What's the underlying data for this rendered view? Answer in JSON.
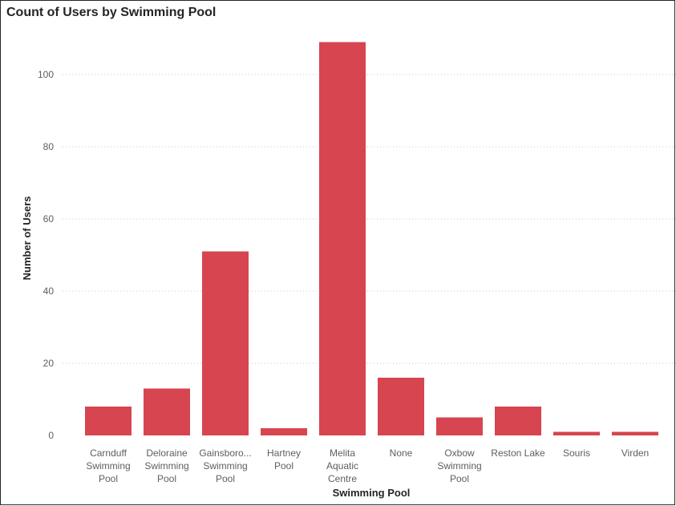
{
  "chart_data": {
    "type": "bar",
    "title": "Count of Users by Swimming Pool",
    "xlabel": "Swimming Pool",
    "ylabel": "Number of Users",
    "categories": [
      "Carnduff Swimming Pool",
      "Deloraine Swimming Pool",
      "Gainsboro... Swimming Pool",
      "Hartney Pool",
      "Melita Aquatic Centre",
      "None",
      "Oxbow Swimming Pool",
      "Reston Lake",
      "Souris",
      "Virden"
    ],
    "category_lines": [
      [
        "Carnduff",
        "Swimming",
        "Pool"
      ],
      [
        "Deloraine",
        "Swimming",
        "Pool"
      ],
      [
        "Gainsboro...",
        "Swimming",
        "Pool"
      ],
      [
        "Hartney",
        "Pool"
      ],
      [
        "Melita",
        "Aquatic",
        "Centre"
      ],
      [
        "None"
      ],
      [
        "Oxbow",
        "Swimming",
        "Pool"
      ],
      [
        "Reston Lake"
      ],
      [
        "Souris"
      ],
      [
        "Virden"
      ]
    ],
    "values": [
      8,
      13,
      51,
      2,
      109,
      16,
      5,
      8,
      1,
      1
    ],
    "ylim": [
      0,
      110
    ],
    "yticks": [
      0,
      20,
      40,
      60,
      80,
      100
    ],
    "grid": true,
    "bar_color": "#d64550",
    "grid_color": "#c8c8c8"
  }
}
